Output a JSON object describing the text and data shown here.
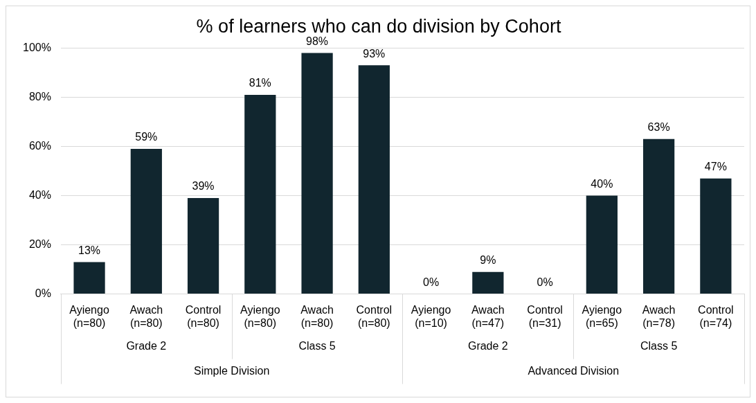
{
  "chart_data": {
    "type": "bar",
    "title": "% of learners who can do division by Cohort",
    "categories": [
      "Ayiengo (n=80)",
      "Awach (n=80)",
      "Control (n=80)",
      "Ayiengo (n=80)",
      "Awach (n=80)",
      "Control (n=80)",
      "Ayiengo (n=10)",
      "Awach (n=47)",
      "Control (n=31)",
      "Ayiengo (n=65)",
      "Awach (n=78)",
      "Control (n=74)"
    ],
    "values": [
      13,
      59,
      39,
      81,
      98,
      93,
      0,
      9,
      0,
      40,
      63,
      47
    ],
    "value_labels": [
      "13%",
      "59%",
      "39%",
      "81%",
      "98%",
      "93%",
      "0%",
      "9%",
      "0%",
      "40%",
      "63%",
      "47%"
    ],
    "color": "#11262f",
    "ylim": [
      0,
      100
    ],
    "yticks": [
      {
        "value": 0,
        "label": "0%"
      },
      {
        "value": 20,
        "label": "20%"
      },
      {
        "value": 40,
        "label": "40%"
      },
      {
        "value": 60,
        "label": "60%"
      },
      {
        "value": 80,
        "label": "80%"
      },
      {
        "value": 100,
        "label": "100%"
      }
    ],
    "grid": "y",
    "legend": false,
    "annotations": [
      "Grade 2",
      "Class 5",
      "Grade 2",
      "Class 5",
      "Simple Division",
      "Advanced Division"
    ]
  }
}
